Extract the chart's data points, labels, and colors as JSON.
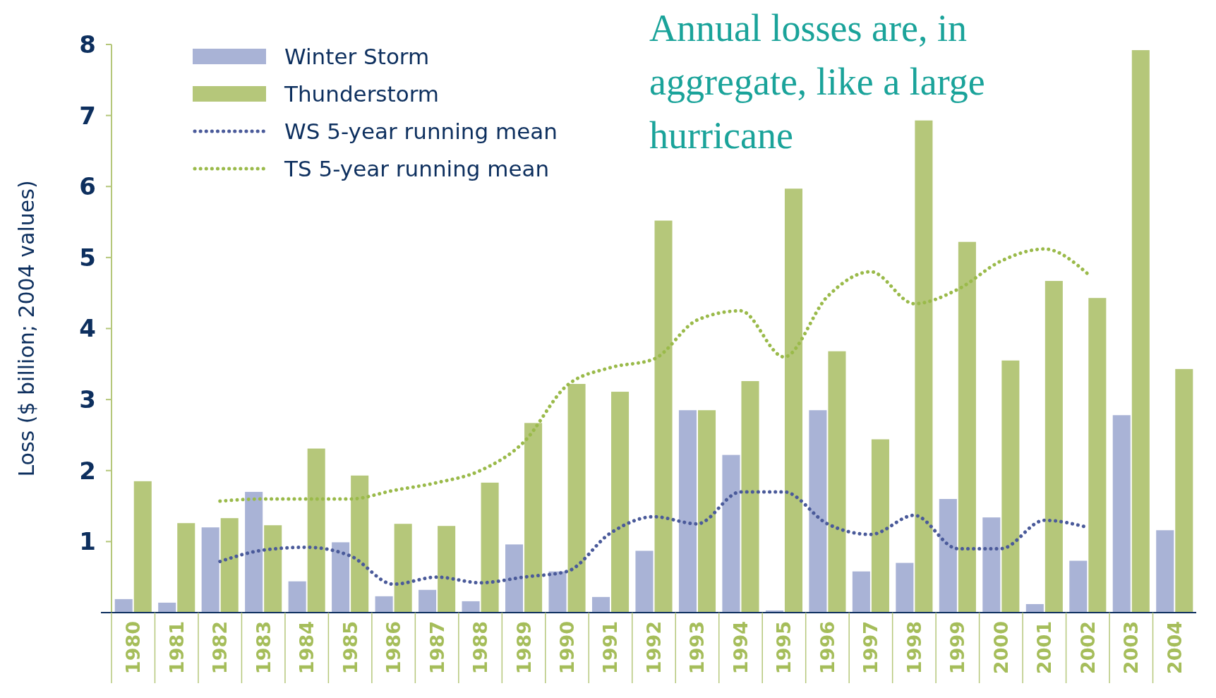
{
  "chart_data": {
    "type": "bar",
    "ylabel": "Loss ($ billion; 2004 values)",
    "categories": [
      "1980",
      "1981",
      "1982",
      "1983",
      "1984",
      "1985",
      "1986",
      "1987",
      "1988",
      "1989",
      "1990",
      "1991",
      "1992",
      "1993",
      "1994",
      "1995",
      "1996",
      "1997",
      "1998",
      "1999",
      "2000",
      "2001",
      "2002",
      "2003",
      "2004"
    ],
    "series": [
      {
        "name": "Winter Storm",
        "color": "#a9b3d6",
        "values": [
          0.19,
          0.14,
          1.2,
          1.7,
          0.44,
          0.99,
          0.23,
          0.32,
          0.16,
          0.96,
          0.58,
          0.22,
          0.87,
          2.85,
          2.22,
          0.03,
          2.85,
          0.58,
          0.7,
          1.6,
          1.34,
          0.12,
          0.73,
          2.78,
          1.16
        ]
      },
      {
        "name": "Thunderstorm",
        "color": "#b5c77a",
        "values": [
          1.85,
          1.26,
          1.33,
          1.23,
          2.31,
          1.93,
          1.25,
          1.22,
          1.83,
          2.67,
          3.22,
          3.11,
          5.52,
          2.85,
          3.26,
          5.97,
          3.68,
          2.44,
          6.93,
          5.22,
          3.55,
          4.67,
          4.43,
          7.92,
          3.43
        ]
      },
      {
        "name": "WS 5-year running mean",
        "type": "line",
        "color": "#4a5a9a",
        "line_style": "dotted",
        "values": [
          null,
          null,
          0.72,
          0.88,
          0.92,
          0.8,
          0.4,
          0.5,
          0.42,
          0.5,
          0.58,
          1.12,
          1.35,
          1.25,
          1.7,
          1.7,
          1.25,
          1.1,
          1.37,
          0.9,
          0.9,
          1.3,
          1.2,
          null,
          null
        ]
      },
      {
        "name": "TS 5-year running mean",
        "type": "line",
        "color": "#9aba4a",
        "line_style": "dotted",
        "values": [
          null,
          null,
          1.57,
          1.6,
          1.6,
          1.6,
          1.72,
          1.83,
          2.0,
          2.4,
          3.2,
          3.45,
          3.57,
          4.12,
          4.25,
          3.6,
          4.45,
          4.8,
          4.35,
          4.55,
          4.95,
          5.12,
          4.77,
          null,
          null
        ]
      }
    ],
    "ylim": [
      0,
      8
    ],
    "yticks": [
      1,
      2,
      3,
      4,
      5,
      6,
      7,
      8
    ],
    "marker": "none",
    "legend": "top left",
    "grid": false,
    "annotations": [
      "Annual losses are, in aggregate, like a large hurricane"
    ]
  }
}
